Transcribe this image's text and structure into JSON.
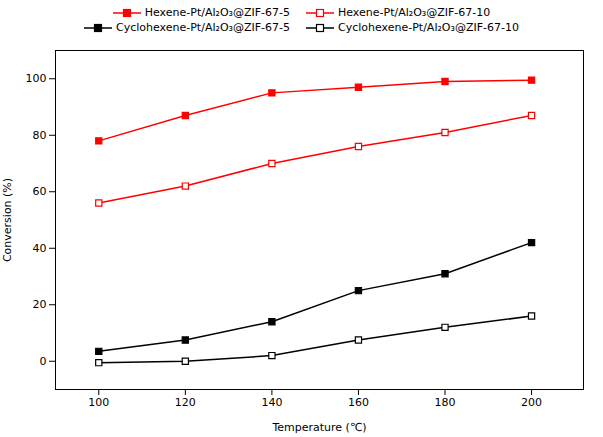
{
  "chart_data": {
    "type": "line",
    "x": [
      100,
      120,
      140,
      160,
      180,
      200
    ],
    "series": [
      {
        "name": "Hexene-Pt/Al₂O₃@ZIF-67-5",
        "color": "#FF0000",
        "marker": "square",
        "values": [
          78,
          87,
          95,
          97,
          99,
          99.5
        ]
      },
      {
        "name": "Hexene-Pt/Al₂O₃@ZIF-67-10",
        "color": "#FF0000",
        "marker": "square_open",
        "values": [
          56,
          62,
          70,
          76,
          81,
          87
        ]
      },
      {
        "name": "Cyclohexene-Pt/Al₂O₃@ZIF-67-5",
        "color": "#000000",
        "marker": "square",
        "values": [
          3.5,
          7.5,
          14,
          25,
          31,
          42
        ]
      },
      {
        "name": "Cyclohexene-Pt/Al₂O₃@ZIF-67-10",
        "color": "#000000",
        "marker": "square_open",
        "values": [
          -0.5,
          0,
          2,
          7.5,
          12,
          16
        ]
      }
    ],
    "xlabel": "Temperature (℃)",
    "ylabel": "Conversion (%)",
    "xlim": [
      90,
      212
    ],
    "ylim": [
      -10,
      110
    ],
    "xticks": [
      100,
      120,
      140,
      160,
      180,
      200
    ],
    "yticks": [
      0,
      20,
      40,
      60,
      80,
      100
    ],
    "legend": "top"
  }
}
